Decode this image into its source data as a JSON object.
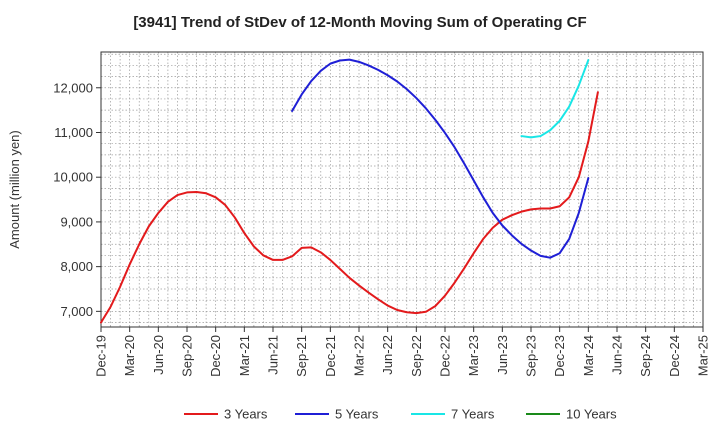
{
  "chart_data": {
    "type": "line",
    "title": "[3941]  Trend of StDev of 12-Month Moving Sum of Operating CF",
    "xlabel": "",
    "ylabel": "Amount (million yen)",
    "ylim": [
      6650,
      12800
    ],
    "yticks": [
      7000,
      8000,
      9000,
      10000,
      11000,
      12000
    ],
    "ytick_labels": [
      "7,000",
      "8,000",
      "9,000",
      "10,000",
      "11,000",
      "12,000"
    ],
    "x_start": "2019-12",
    "x_end": "2025-03",
    "xtick_labels": [
      "Dec-19",
      "Mar-20",
      "Jun-20",
      "Sep-20",
      "Dec-20",
      "Mar-21",
      "Jun-21",
      "Sep-21",
      "Dec-21",
      "Mar-22",
      "Jun-22",
      "Sep-22",
      "Dec-22",
      "Mar-23",
      "Jun-23",
      "Sep-23",
      "Dec-23",
      "Mar-24",
      "Jun-24",
      "Sep-24",
      "Dec-24",
      "Mar-25"
    ],
    "grid": true,
    "legend_position": "bottom",
    "series": [
      {
        "name": "3 Years",
        "color": "#e31a1c",
        "start": "2019-12",
        "values": [
          6750,
          7100,
          7550,
          8050,
          8500,
          8900,
          9200,
          9450,
          9600,
          9660,
          9670,
          9640,
          9550,
          9380,
          9100,
          8750,
          8450,
          8250,
          8150,
          8150,
          8230,
          8420,
          8430,
          8320,
          8150,
          7950,
          7750,
          7580,
          7420,
          7270,
          7130,
          7030,
          6980,
          6960,
          6990,
          7120,
          7350,
          7640,
          7960,
          8300,
          8620,
          8870,
          9050,
          9150,
          9230,
          9280,
          9300,
          9300,
          9350,
          9550,
          10000,
          10800,
          11900
        ]
      },
      {
        "name": "5 Years",
        "color": "#1f1fd6",
        "start": "2021-08",
        "values": [
          11480,
          11850,
          12150,
          12380,
          12540,
          12610,
          12630,
          12580,
          12500,
          12400,
          12280,
          12140,
          11970,
          11770,
          11540,
          11280,
          10990,
          10670,
          10310,
          9930,
          9550,
          9200,
          8920,
          8700,
          8510,
          8360,
          8240,
          8200,
          8300,
          8620,
          9200,
          9980
        ]
      },
      {
        "name": "7 Years",
        "color": "#19e6e6",
        "start": "2023-08",
        "values": [
          10920,
          10890,
          10920,
          11050,
          11260,
          11580,
          12050,
          12620
        ]
      },
      {
        "name": "10 Years",
        "color": "#1a8a1a",
        "start": "2019-12",
        "values": []
      }
    ]
  }
}
